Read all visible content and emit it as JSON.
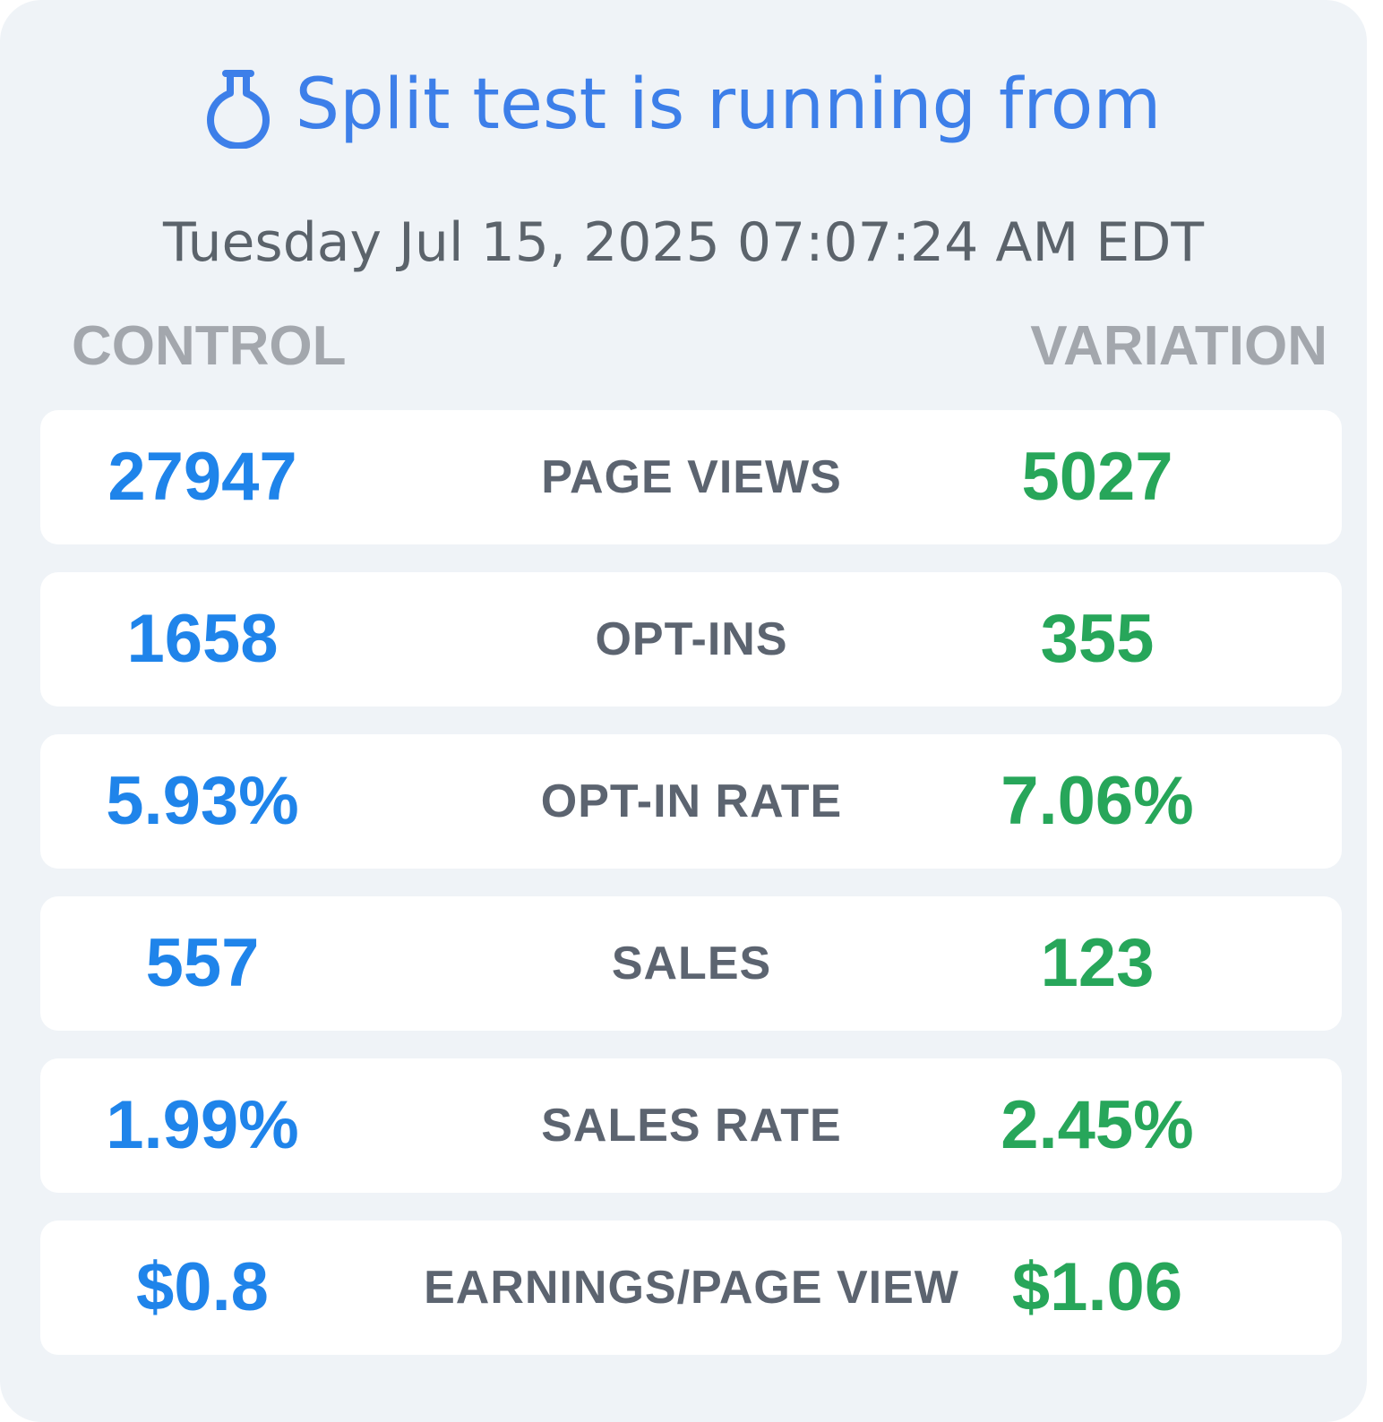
{
  "header": {
    "title": "Split test is running from",
    "icon": "flask-icon"
  },
  "started_at": "Tuesday Jul 15, 2025 07:07:24 AM EDT",
  "columns": {
    "control": "CONTROL",
    "variation": "VARIATION"
  },
  "colors": {
    "accent_blue": "#3d7fe9",
    "control_blue": "#1f84ea",
    "variation_green": "#27a65a",
    "panel_bg": "#eff3f7"
  },
  "metrics": [
    {
      "label": "PAGE VIEWS",
      "control": "27947",
      "variation": "5027"
    },
    {
      "label": "OPT-INS",
      "control": "1658",
      "variation": "355"
    },
    {
      "label": "OPT-IN RATE",
      "control": "5.93%",
      "variation": "7.06%"
    },
    {
      "label": "SALES",
      "control": "557",
      "variation": "123"
    },
    {
      "label": "SALES RATE",
      "control": "1.99%",
      "variation": "2.45%"
    },
    {
      "label": "EARNINGS/PAGE VIEW",
      "control": "$0.8",
      "variation": "$1.06"
    }
  ]
}
